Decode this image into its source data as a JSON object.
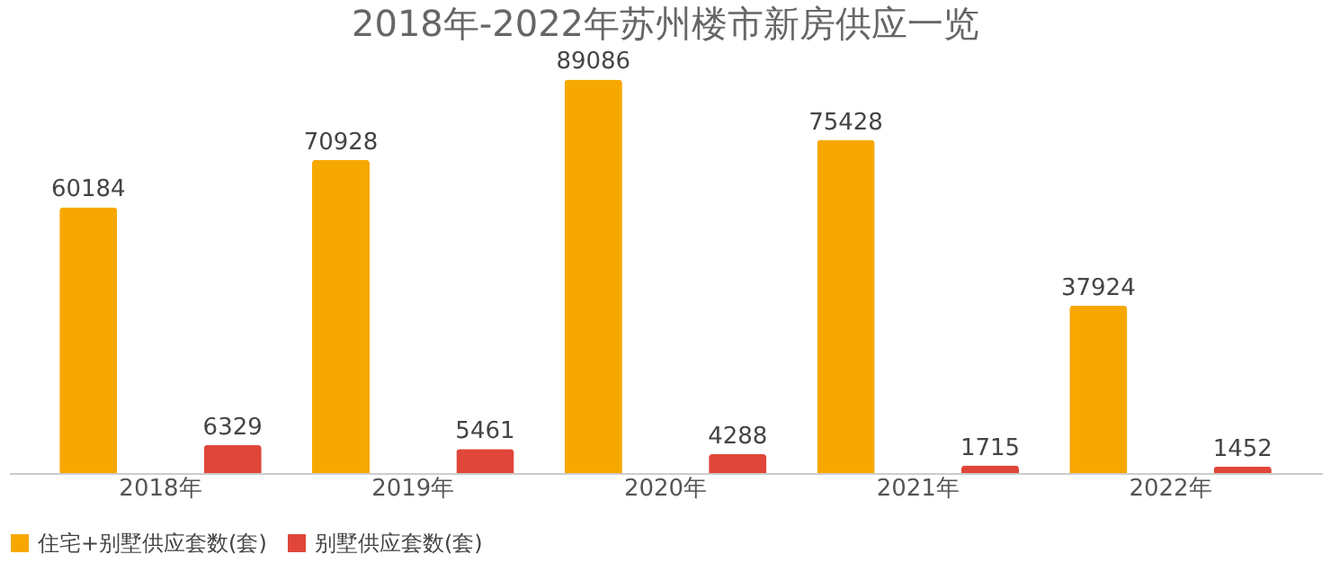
{
  "chart_data": {
    "type": "bar",
    "title": "2018年-2022年苏州楼市新房供应一览",
    "categories": [
      "2018年",
      "2019年",
      "2020年",
      "2021年",
      "2022年"
    ],
    "series": [
      {
        "name": "住宅+别墅供应套数(套)",
        "color": "#f7a800",
        "values": [
          60184,
          70928,
          89086,
          75428,
          37924
        ]
      },
      {
        "name": "别墅供应套数(套)",
        "color": "#e0463a",
        "values": [
          6329,
          5461,
          4288,
          1715,
          1452
        ]
      }
    ],
    "data_labels": true,
    "legend": "bottom",
    "grid": false
  }
}
